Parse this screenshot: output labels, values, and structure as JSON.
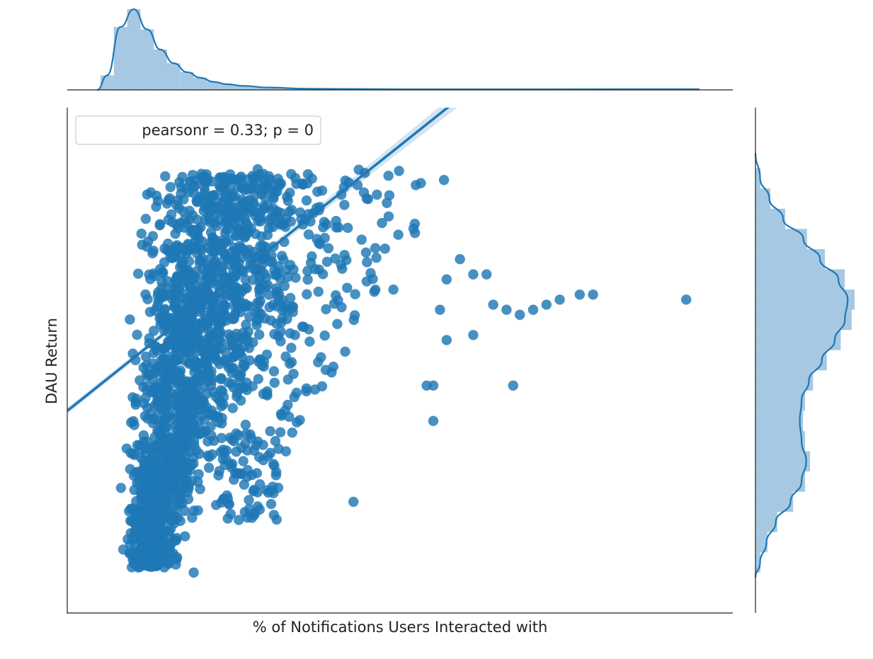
{
  "chart_data": {
    "type": "scatter",
    "title": "",
    "xlabel": "% of Notifications Users Interacted with",
    "ylabel": "DAU Return",
    "xlim": [
      0,
      100
    ],
    "ylim": [
      0,
      100
    ],
    "grid": false,
    "annotation": "pearsonr = 0.33; p = 0",
    "legend_location": "upper left",
    "colors": {
      "points": "#1f77b4",
      "hist": "#a6c8e2",
      "band": "#c6dbef"
    },
    "regression": {
      "intercept": 40.0,
      "slope": 1.05
    },
    "outlier_points": [
      {
        "x": 93,
        "y": 62
      },
      {
        "x": 79,
        "y": 63
      },
      {
        "x": 77,
        "y": 63
      },
      {
        "x": 74,
        "y": 62
      },
      {
        "x": 72,
        "y": 61
      },
      {
        "x": 70,
        "y": 60
      },
      {
        "x": 68,
        "y": 59
      },
      {
        "x": 64,
        "y": 61
      },
      {
        "x": 63,
        "y": 67
      },
      {
        "x": 61,
        "y": 67
      },
      {
        "x": 66,
        "y": 60
      },
      {
        "x": 61,
        "y": 55
      },
      {
        "x": 67,
        "y": 45
      },
      {
        "x": 54,
        "y": 45
      },
      {
        "x": 55,
        "y": 45
      },
      {
        "x": 55,
        "y": 38
      },
      {
        "x": 43,
        "y": 22
      },
      {
        "x": 19,
        "y": 8
      },
      {
        "x": 57,
        "y": 66
      },
      {
        "x": 59,
        "y": 70
      },
      {
        "x": 56,
        "y": 60
      },
      {
        "x": 49,
        "y": 64
      },
      {
        "x": 45,
        "y": 82
      },
      {
        "x": 57,
        "y": 54
      }
    ],
    "x_marginal_hist": [
      {
        "bin": [
          5,
          7
        ],
        "density": 0.18
      },
      {
        "bin": [
          7,
          9
        ],
        "density": 0.78
      },
      {
        "bin": [
          9,
          11
        ],
        "density": 1.0
      },
      {
        "bin": [
          11,
          13
        ],
        "density": 0.75
      },
      {
        "bin": [
          13,
          15
        ],
        "density": 0.5
      },
      {
        "bin": [
          15,
          17
        ],
        "density": 0.33
      },
      {
        "bin": [
          17,
          19
        ],
        "density": 0.22
      },
      {
        "bin": [
          19,
          21
        ],
        "density": 0.15
      },
      {
        "bin": [
          21,
          23
        ],
        "density": 0.1
      },
      {
        "bin": [
          23,
          25
        ],
        "density": 0.07
      },
      {
        "bin": [
          25,
          28
        ],
        "density": 0.05
      },
      {
        "bin": [
          28,
          32
        ],
        "density": 0.03
      },
      {
        "bin": [
          32,
          40
        ],
        "density": 0.015
      },
      {
        "bin": [
          40,
          60
        ],
        "density": 0.008
      }
    ],
    "y_marginal_hist": [
      {
        "bin": [
          8,
          12
        ],
        "density": 0.05
      },
      {
        "bin": [
          12,
          16
        ],
        "density": 0.12
      },
      {
        "bin": [
          16,
          20
        ],
        "density": 0.22
      },
      {
        "bin": [
          20,
          24
        ],
        "density": 0.38
      },
      {
        "bin": [
          24,
          28
        ],
        "density": 0.5
      },
      {
        "bin": [
          28,
          32
        ],
        "density": 0.55
      },
      {
        "bin": [
          32,
          36
        ],
        "density": 0.5
      },
      {
        "bin": [
          36,
          40
        ],
        "density": 0.48
      },
      {
        "bin": [
          40,
          44
        ],
        "density": 0.5
      },
      {
        "bin": [
          44,
          48
        ],
        "density": 0.58
      },
      {
        "bin": [
          48,
          52
        ],
        "density": 0.72
      },
      {
        "bin": [
          52,
          56
        ],
        "density": 0.86
      },
      {
        "bin": [
          56,
          60
        ],
        "density": 0.97
      },
      {
        "bin": [
          60,
          64
        ],
        "density": 1.0
      },
      {
        "bin": [
          64,
          68
        ],
        "density": 0.9
      },
      {
        "bin": [
          68,
          72
        ],
        "density": 0.7
      },
      {
        "bin": [
          72,
          76
        ],
        "density": 0.52
      },
      {
        "bin": [
          76,
          80
        ],
        "density": 0.3
      },
      {
        "bin": [
          80,
          84
        ],
        "density": 0.15
      },
      {
        "bin": [
          84,
          88
        ],
        "density": 0.05
      }
    ]
  }
}
